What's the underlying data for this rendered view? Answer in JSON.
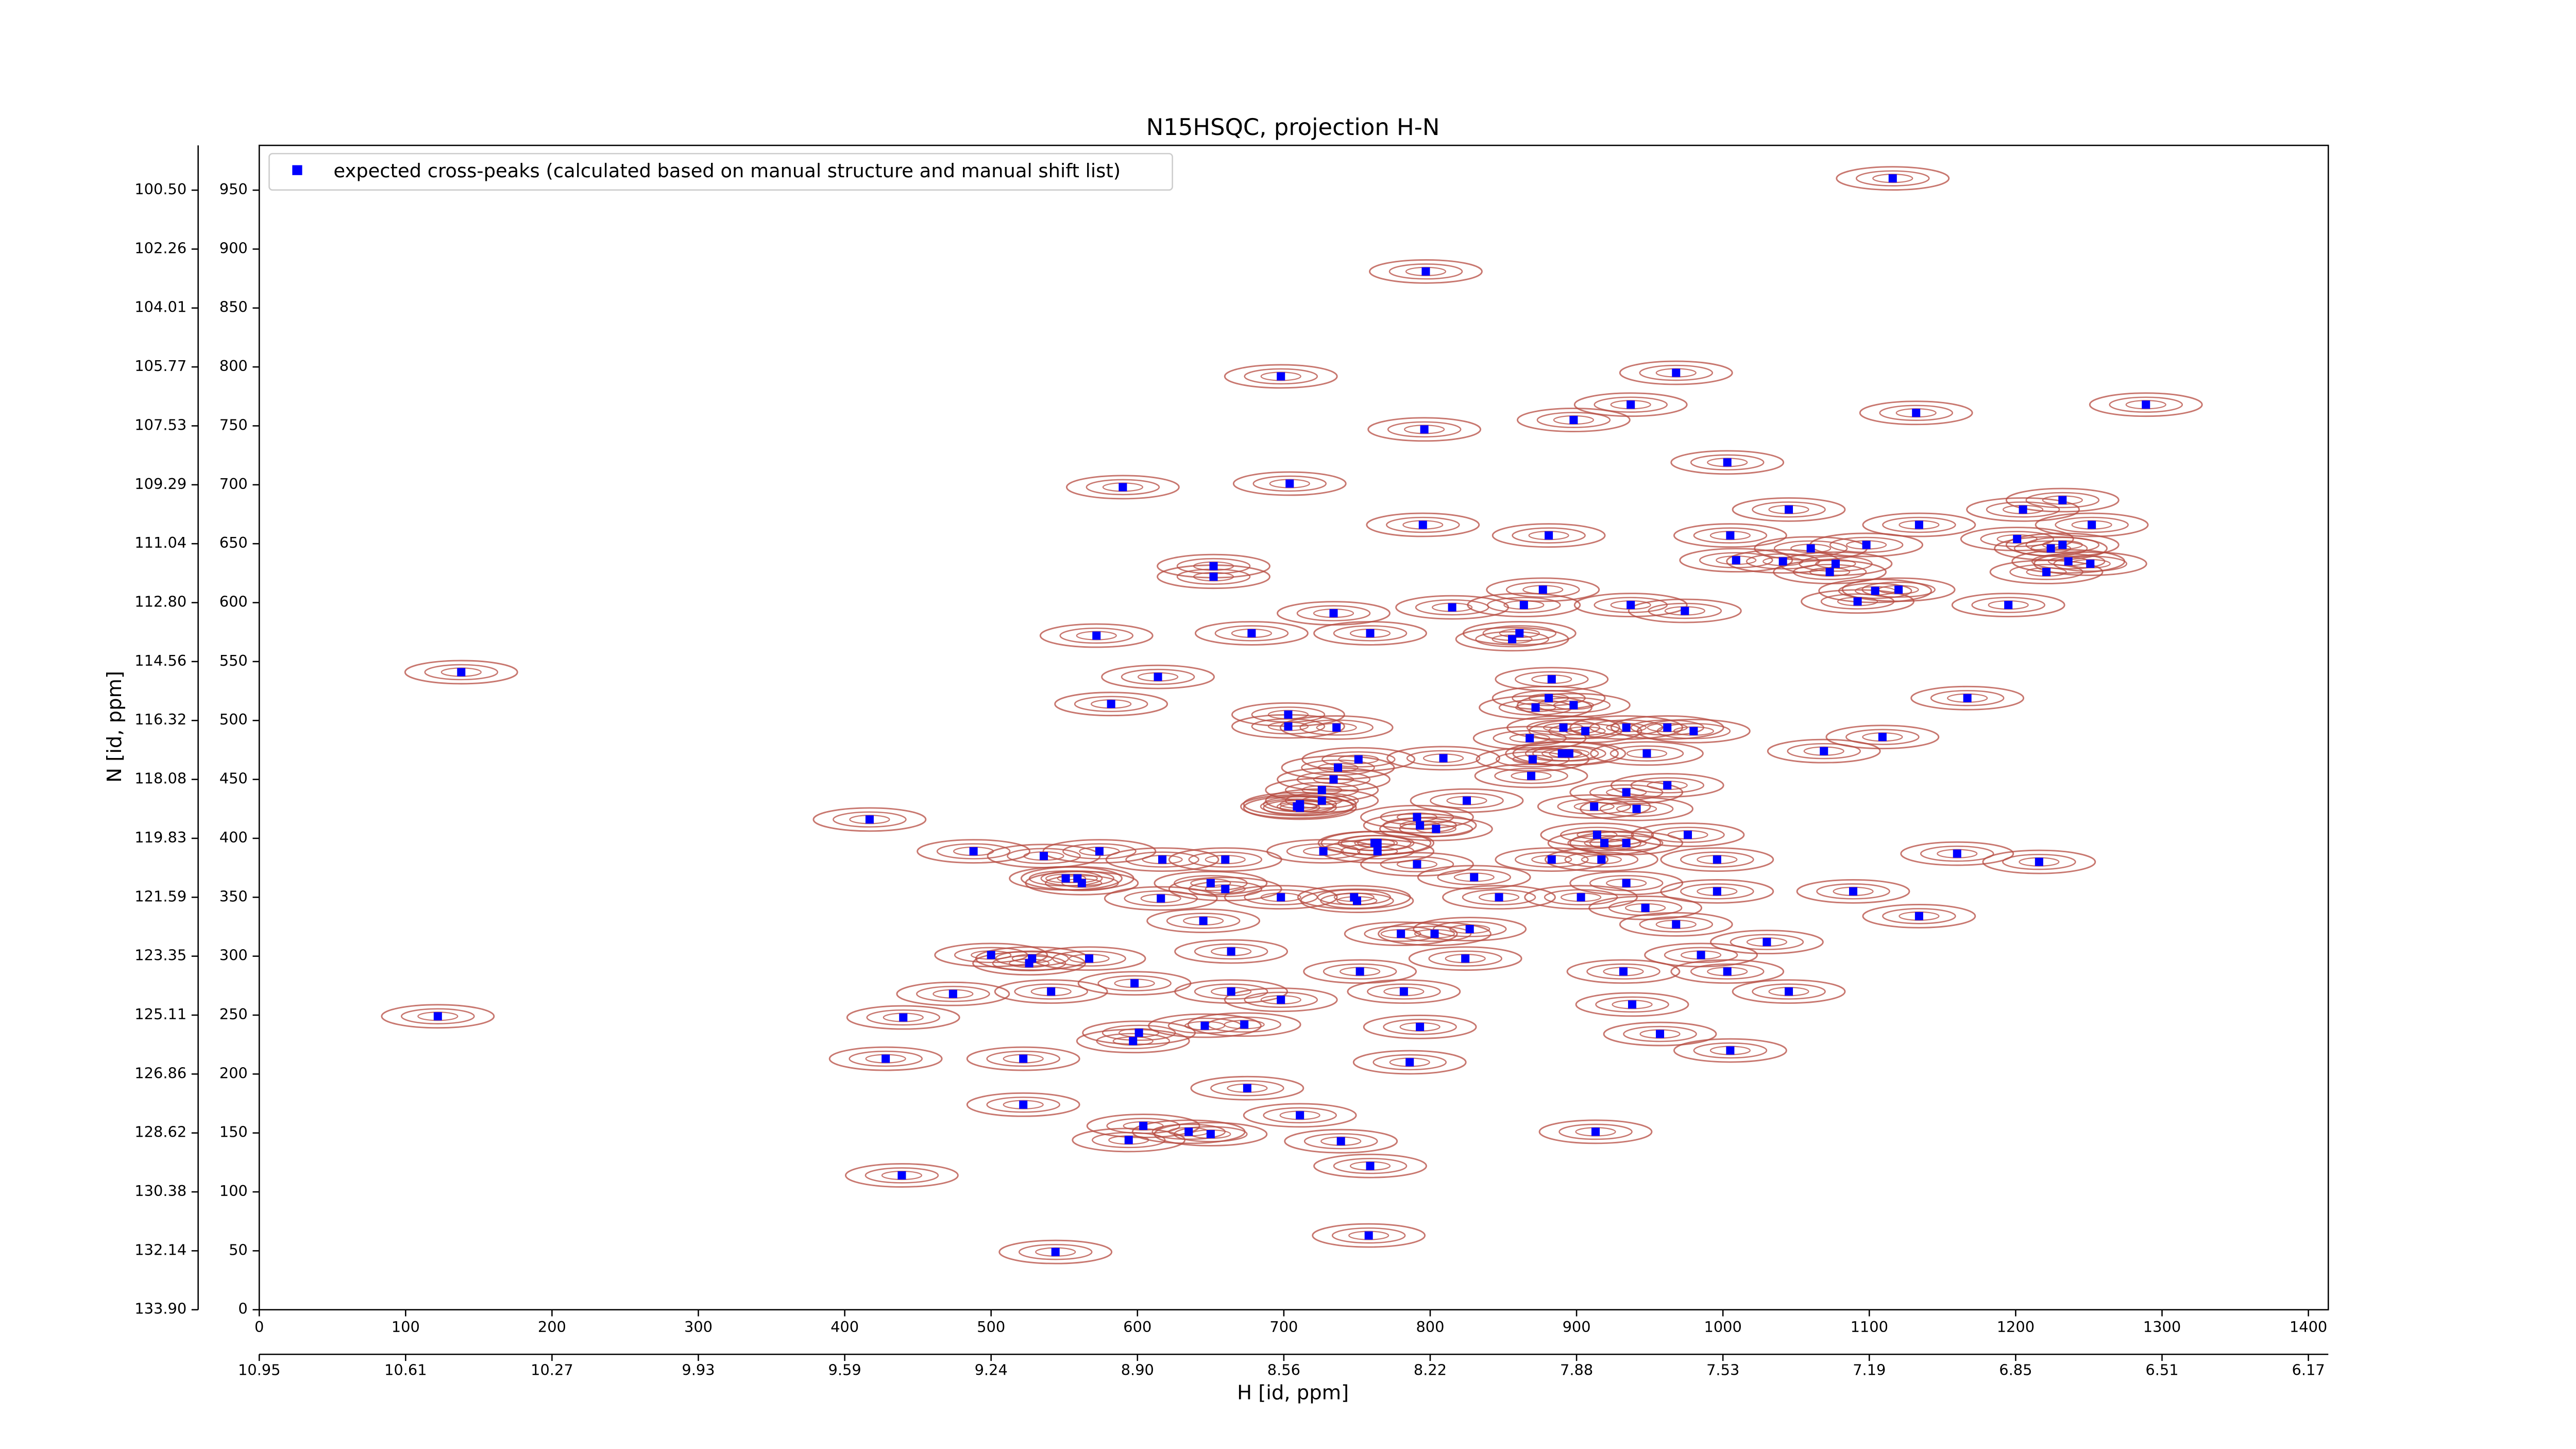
{
  "chart_data": {
    "type": "scatter",
    "title": "N15HSQC, projection H-N",
    "xlabel": "H [id, ppm]",
    "ylabel": "N [id, ppm]",
    "xlim": [
      0,
      1413.6
    ],
    "ylim": [
      0,
      988
    ],
    "xticks": [
      0,
      100,
      200,
      300,
      400,
      500,
      600,
      700,
      800,
      900,
      1000,
      1100,
      1200,
      1300,
      1400
    ],
    "x2ticks": [
      {
        "value": 0,
        "label": "10.95"
      },
      {
        "value": 100,
        "label": "10.61"
      },
      {
        "value": 200,
        "label": "10.27"
      },
      {
        "value": 300,
        "label": "9.93"
      },
      {
        "value": 400,
        "label": "9.59"
      },
      {
        "value": 500,
        "label": "9.24"
      },
      {
        "value": 600,
        "label": "8.90"
      },
      {
        "value": 700,
        "label": "8.56"
      },
      {
        "value": 800,
        "label": "8.22"
      },
      {
        "value": 900,
        "label": "7.88"
      },
      {
        "value": 1000,
        "label": "7.53"
      },
      {
        "value": 1100,
        "label": "7.19"
      },
      {
        "value": 1200,
        "label": "6.85"
      },
      {
        "value": 1300,
        "label": "6.51"
      },
      {
        "value": 1400,
        "label": "6.17"
      }
    ],
    "yticks": [
      0,
      50,
      100,
      150,
      200,
      250,
      300,
      350,
      400,
      450,
      500,
      550,
      600,
      650,
      700,
      750,
      800,
      850,
      900,
      950
    ],
    "y2ticks": [
      {
        "value": 0,
        "label": "133.90"
      },
      {
        "value": 50,
        "label": "132.14"
      },
      {
        "value": 100,
        "label": "130.38"
      },
      {
        "value": 150,
        "label": "128.62"
      },
      {
        "value": 200,
        "label": "126.86"
      },
      {
        "value": 250,
        "label": "125.11"
      },
      {
        "value": 300,
        "label": "123.35"
      },
      {
        "value": 350,
        "label": "121.59"
      },
      {
        "value": 400,
        "label": "119.83"
      },
      {
        "value": 450,
        "label": "118.08"
      },
      {
        "value": 500,
        "label": "116.32"
      },
      {
        "value": 550,
        "label": "114.56"
      },
      {
        "value": 600,
        "label": "112.80"
      },
      {
        "value": 650,
        "label": "111.04"
      },
      {
        "value": 700,
        "label": "109.29"
      },
      {
        "value": 750,
        "label": "107.53"
      },
      {
        "value": 800,
        "label": "105.77"
      },
      {
        "value": 850,
        "label": "104.01"
      },
      {
        "value": 900,
        "label": "102.26"
      },
      {
        "value": 950,
        "label": "100.50"
      }
    ],
    "legend": "upper left",
    "contour_color": "#b5493f",
    "series": [
      {
        "name": "expected cross-peaks (calculated based on manual structure and manual shift list)",
        "color": "#0000ff",
        "x": [
          1116,
          797,
          698,
          968,
          937,
          898,
          1132,
          1289,
          796,
          1003,
          590,
          704,
          795,
          881,
          1005,
          1045,
          1009,
          1041,
          1060,
          1073,
          1077,
          1098,
          1134,
          1205,
          1232,
          1252,
          1201,
          1224,
          1232,
          1221,
          1236,
          1251,
          1120,
          1104,
          1092,
          1195,
          974,
          937,
          877,
          864,
          815,
          734,
          759,
          861,
          856,
          678,
          572,
          652,
          652,
          614,
          582,
          703,
          703,
          736,
          883,
          881,
          872,
          891,
          906,
          898,
          934,
          962,
          980,
          948,
          895,
          868,
          870,
          869,
          890,
          809,
          751,
          737,
          1069,
          1109,
          1167,
          138,
          122,
          417,
          488,
          536,
          551,
          559,
          562,
          574,
          617,
          660,
          650,
          660,
          616,
          698,
          726,
          711,
          726,
          734,
          711,
          709,
          727,
          762,
          764,
          748,
          750,
          764,
          791,
          804,
          791,
          793,
          825,
          830,
          847,
          883,
          912,
          914,
          919,
          934,
          941,
          962,
          976,
          996,
          934,
          917,
          934,
          947,
          968,
          996,
          1089,
          1134,
          1160,
          1216,
          780,
          803,
          827,
          824,
          782,
          752,
          664,
          645,
          567,
          528,
          500,
          526,
          541,
          474,
          440,
          428,
          522,
          598,
          601,
          597,
          646,
          673,
          664,
          698,
          793,
          786,
          675,
          711,
          739,
          759,
          758,
          604,
          594,
          635,
          650,
          522,
          439,
          544,
          913,
          1003,
          985,
          932,
          938,
          957,
          1005,
          1045,
          1030,
          903
        ],
        "y": [
          960,
          881,
          792,
          795,
          768,
          755,
          761,
          768,
          747,
          719,
          698,
          701,
          666,
          657,
          657,
          679,
          636,
          635,
          646,
          626,
          633,
          649,
          666,
          679,
          687,
          666,
          654,
          646,
          649,
          626,
          635,
          633,
          611,
          610,
          601,
          598,
          593,
          598,
          611,
          598,
          596,
          591,
          574,
          574,
          569,
          574,
          572,
          631,
          622,
          537,
          514,
          505,
          495,
          494,
          535,
          519,
          511,
          494,
          491,
          513,
          494,
          494,
          491,
          472,
          472,
          485,
          467,
          453,
          472,
          468,
          467,
          460,
          474,
          486,
          519,
          541,
          249,
          416,
          389,
          385,
          366,
          366,
          362,
          389,
          382,
          382,
          362,
          357,
          349,
          350,
          432,
          429,
          441,
          450,
          426,
          427,
          389,
          396,
          389,
          350,
          347,
          396,
          418,
          408,
          378,
          411,
          432,
          367,
          350,
          382,
          427,
          403,
          396,
          439,
          425,
          445,
          403,
          382,
          396,
          382,
          362,
          341,
          327,
          355,
          355,
          334,
          387,
          380,
          319,
          319,
          323,
          298,
          270,
          287,
          304,
          330,
          298,
          298,
          301,
          294,
          270,
          268,
          248,
          213,
          213,
          277,
          235,
          228,
          241,
          242,
          270,
          263,
          240,
          210,
          188,
          165,
          143,
          122,
          63,
          156,
          144,
          151,
          149,
          174,
          114,
          49,
          151,
          287,
          301,
          287,
          259,
          234,
          220,
          270,
          312,
          350
        ]
      }
    ]
  }
}
